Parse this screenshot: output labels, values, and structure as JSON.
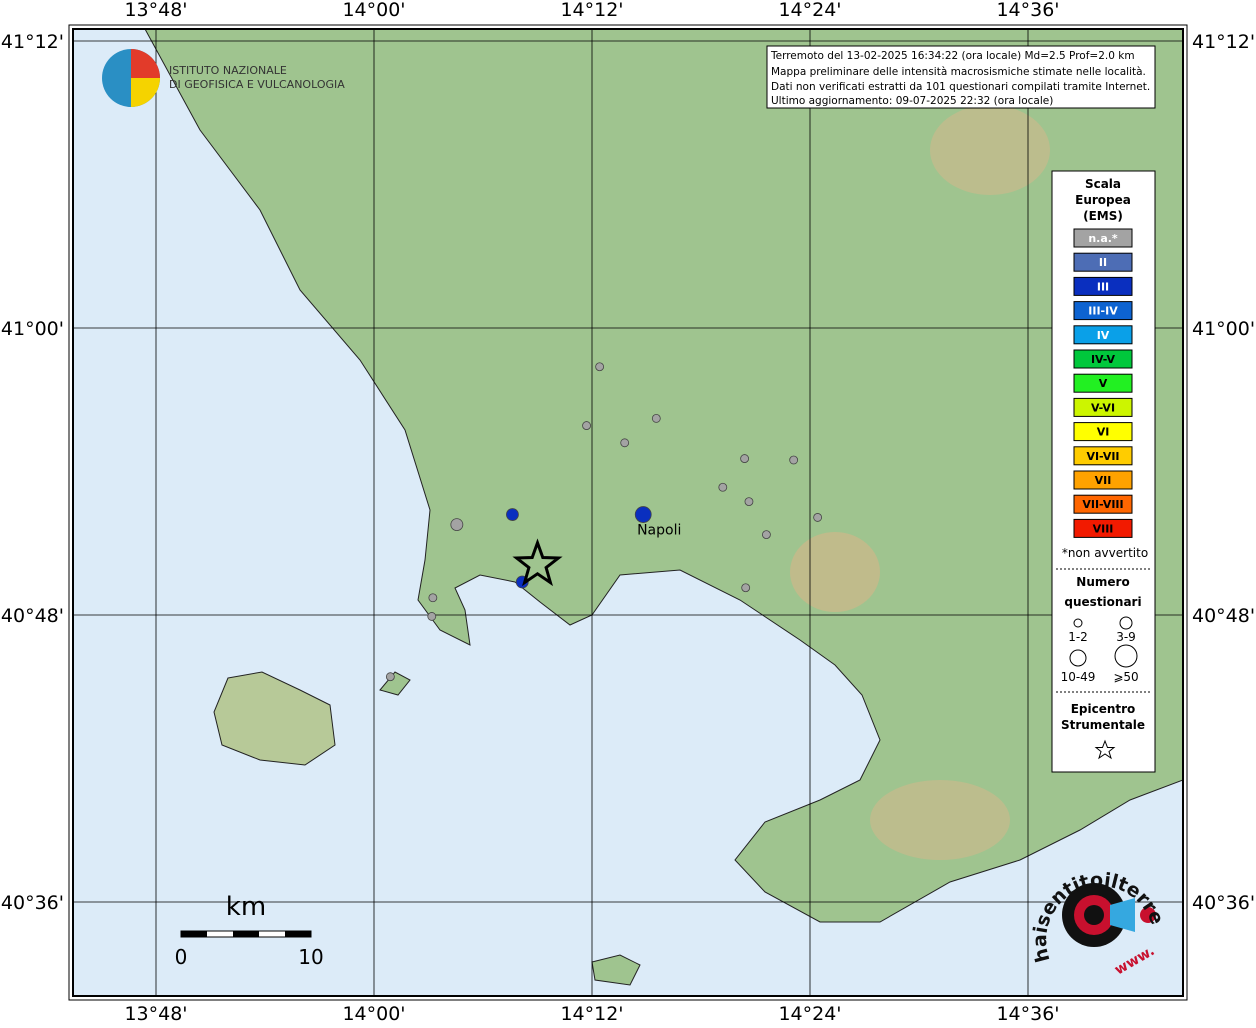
{
  "info": [
    "Terremoto del 13-02-2025 16:34:22 (ora locale) Md=2.5 Prof=2.0 km",
    "Mappa preliminare delle intensità macrosismiche stimate nelle località.",
    "Dati non verificati estratti da 101 questionari compilati tramite Internet.",
    "Ultimo aggiornamento: 09-07-2025 22:32 (ora locale)"
  ],
  "institute": [
    "ISTITUTO NAZIONALE",
    "DI GEOFISICA E VULCANOLOGIA"
  ],
  "lon_ticks": [
    {
      "value": 13.8,
      "label": "13°48'"
    },
    {
      "value": 14.0,
      "label": "14°00'"
    },
    {
      "value": 14.2,
      "label": "14°12'"
    },
    {
      "value": 14.4,
      "label": "14°24'"
    },
    {
      "value": 14.6,
      "label": "14°36'"
    }
  ],
  "lat_ticks": [
    {
      "value": 41.2,
      "label": "41°12'"
    },
    {
      "value": 41.0,
      "label": "41°00'"
    },
    {
      "value": 40.8,
      "label": "40°48'"
    },
    {
      "value": 40.6,
      "label": "40°36'"
    }
  ],
  "legend": {
    "title": [
      "Scala",
      "Europea",
      "(EMS)"
    ],
    "classes": [
      {
        "label": "n.a.*",
        "color": "#a3a3a3"
      },
      {
        "label": "II",
        "color": "#4d6db5"
      },
      {
        "label": "III",
        "color": "#0a2fbf"
      },
      {
        "label": "III-IV",
        "color": "#0d63d1"
      },
      {
        "label": "IV",
        "color": "#0aa0e8"
      },
      {
        "label": "IV-V",
        "color": "#00c83c"
      },
      {
        "label": "V",
        "color": "#22f022"
      },
      {
        "label": "V-VI",
        "color": "#ccf500"
      },
      {
        "label": "VI",
        "color": "#ffff00"
      },
      {
        "label": "VI-VII",
        "color": "#ffcc00"
      },
      {
        "label": "VII",
        "color": "#ffa200"
      },
      {
        "label": "VII-VIII",
        "color": "#ff6600"
      },
      {
        "label": "VIII",
        "color": "#f21a00"
      }
    ],
    "note": "*non avvertito",
    "size_title": [
      "Numero",
      "questionari"
    ],
    "sizes": [
      "1-2",
      "3-9",
      "10-49",
      "⩾50"
    ],
    "epicenter_title": [
      "Epicentro",
      "Strumentale"
    ]
  },
  "points": [
    {
      "lon": 14.207,
      "lat": 40.973,
      "class": 0,
      "size": 0
    },
    {
      "lon": 14.195,
      "lat": 40.932,
      "class": 0,
      "size": 0
    },
    {
      "lon": 14.259,
      "lat": 40.937,
      "class": 0,
      "size": 0
    },
    {
      "lon": 14.23,
      "lat": 40.92,
      "class": 0,
      "size": 0
    },
    {
      "lon": 14.34,
      "lat": 40.909,
      "class": 0,
      "size": 0
    },
    {
      "lon": 14.385,
      "lat": 40.908,
      "class": 0,
      "size": 0
    },
    {
      "lon": 14.32,
      "lat": 40.889,
      "class": 0,
      "size": 0
    },
    {
      "lon": 14.344,
      "lat": 40.879,
      "class": 0,
      "size": 0
    },
    {
      "lon": 14.36,
      "lat": 40.856,
      "class": 0,
      "size": 0
    },
    {
      "lon": 14.407,
      "lat": 40.868,
      "class": 0,
      "size": 0
    },
    {
      "lon": 14.341,
      "lat": 40.819,
      "class": 0,
      "size": 0
    },
    {
      "lon": 14.076,
      "lat": 40.863,
      "class": 0,
      "size": 1
    },
    {
      "lon": 14.054,
      "lat": 40.812,
      "class": 0,
      "size": 0
    },
    {
      "lon": 14.053,
      "lat": 40.799,
      "class": 0,
      "size": 0
    },
    {
      "lon": 14.015,
      "lat": 40.757,
      "class": 0,
      "size": 0
    },
    {
      "lon": 14.127,
      "lat": 40.87,
      "class": 2,
      "size": 1
    },
    {
      "lon": 14.136,
      "lat": 40.823,
      "class": 2,
      "size": 1
    },
    {
      "lon": 14.247,
      "lat": 40.87,
      "class": 2,
      "size": 2
    }
  ],
  "epicenter": {
    "lon": 14.15,
    "lat": 40.835
  },
  "city": {
    "name": "Napoli",
    "lon": 14.247,
    "lat": 40.87
  },
  "scale_bar": {
    "unit": "km",
    "start": 0,
    "end": 10
  },
  "website": {
    "name": "haisentitoilterremoto.it",
    "prefix": "www."
  }
}
